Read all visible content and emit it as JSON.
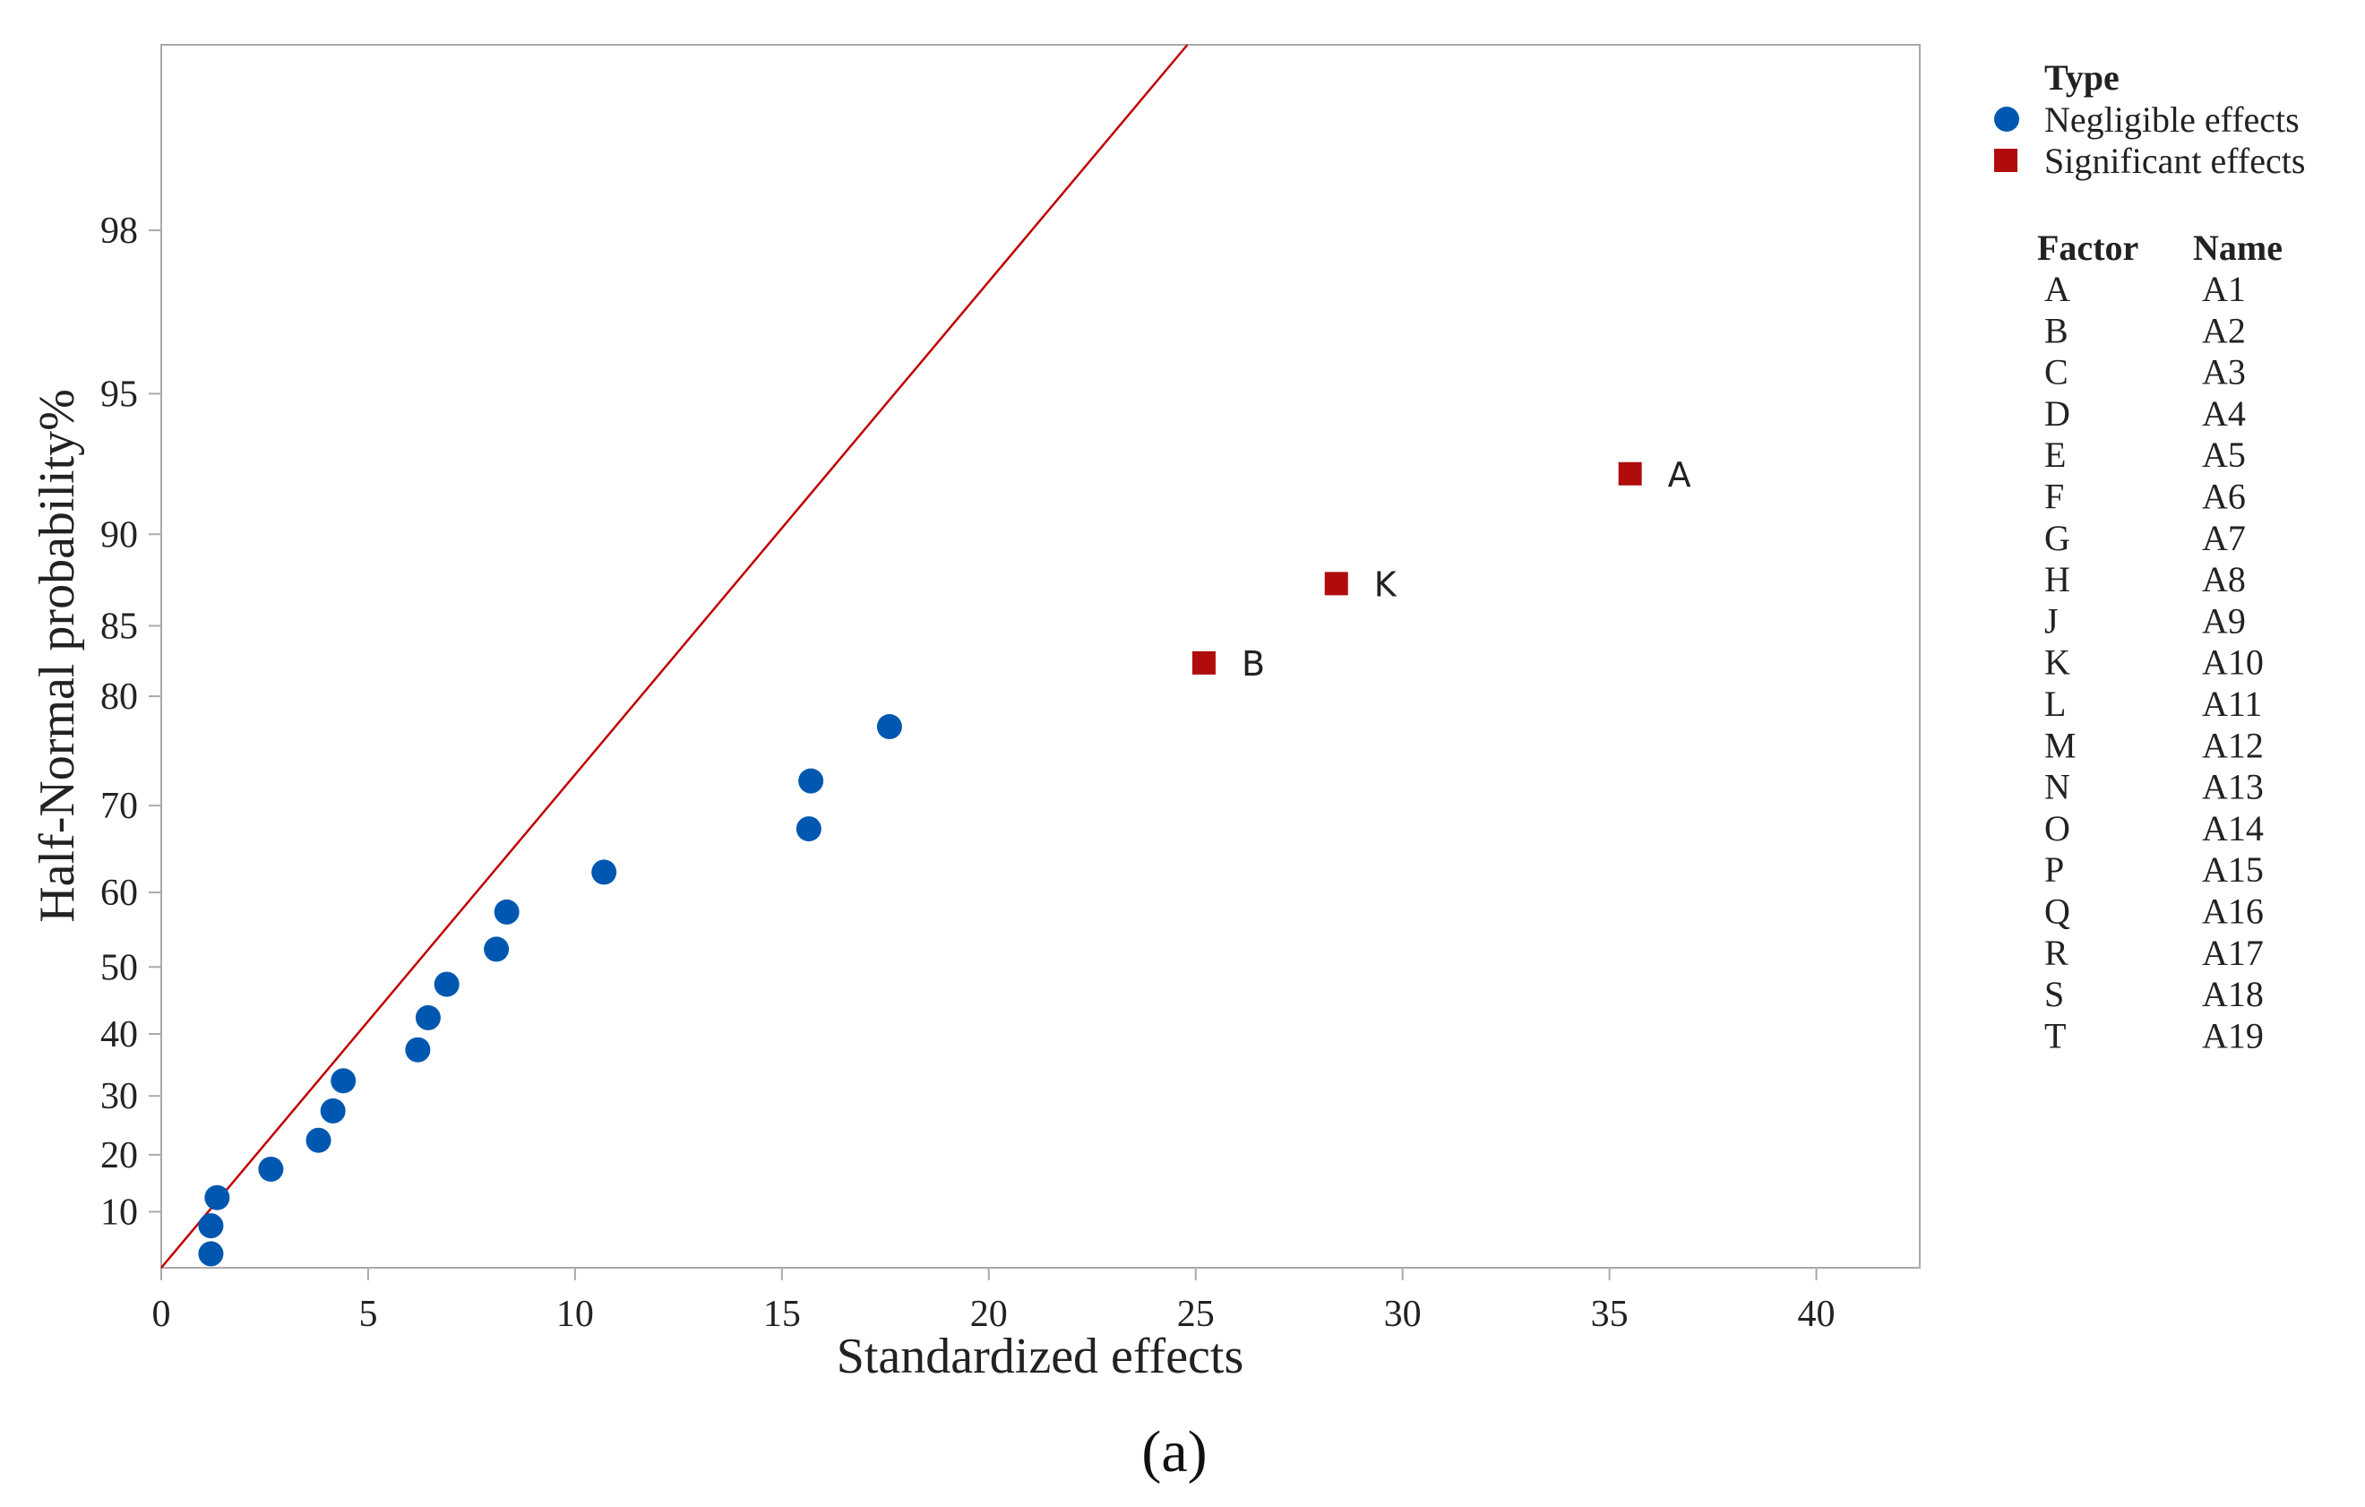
{
  "chart_data": {
    "type": "scatter",
    "xlabel": "Standardized effects",
    "ylabel": "Half-Normal probability%",
    "caption": "(a)",
    "xlim": [
      0,
      42.5
    ],
    "x_ticks": [
      0,
      5,
      10,
      15,
      20,
      25,
      30,
      35,
      40
    ],
    "y_ticks": [
      10,
      20,
      30,
      40,
      50,
      60,
      70,
      80,
      85,
      90,
      95,
      98
    ],
    "grid": false,
    "reference_line": {
      "color": "#c00000",
      "from": [
        0,
        0
      ],
      "to": [
        24.8,
        99.39
      ]
    },
    "legend": {
      "title": "Type",
      "position": "right",
      "entries": [
        {
          "label": "Negligible effects",
          "marker": "circle",
          "color": "#0057b0"
        },
        {
          "label": "Significant effects",
          "marker": "square",
          "color": "#b00c0c"
        }
      ]
    },
    "series": [
      {
        "name": "Negligible effects",
        "color": "#0057b0",
        "points": [
          {
            "x": 1.2,
            "y": 2.5
          },
          {
            "x": 1.2,
            "y": 7.5
          },
          {
            "x": 1.35,
            "y": 12.5
          },
          {
            "x": 2.65,
            "y": 17.5
          },
          {
            "x": 3.8,
            "y": 22.5
          },
          {
            "x": 4.15,
            "y": 27.5
          },
          {
            "x": 4.4,
            "y": 32.5
          },
          {
            "x": 6.2,
            "y": 37.5
          },
          {
            "x": 6.45,
            "y": 42.5
          },
          {
            "x": 6.9,
            "y": 47.5
          },
          {
            "x": 8.1,
            "y": 52.5
          },
          {
            "x": 8.35,
            "y": 57.5
          },
          {
            "x": 10.7,
            "y": 62.5
          },
          {
            "x": 15.65,
            "y": 67.5
          },
          {
            "x": 15.7,
            "y": 72.5
          },
          {
            "x": 17.6,
            "y": 77.5
          }
        ]
      },
      {
        "name": "Significant effects",
        "color": "#b00c0c",
        "points": [
          {
            "x": 25.2,
            "y": 82.5,
            "label": "B"
          },
          {
            "x": 28.4,
            "y": 87.5,
            "label": "K"
          },
          {
            "x": 35.5,
            "y": 92.5,
            "label": "A"
          }
        ]
      }
    ],
    "factor_table": {
      "headers": [
        "Factor",
        "Name"
      ],
      "rows": [
        [
          "A",
          "A1"
        ],
        [
          "B",
          "A2"
        ],
        [
          "C",
          "A3"
        ],
        [
          "D",
          "A4"
        ],
        [
          "E",
          "A5"
        ],
        [
          "F",
          "A6"
        ],
        [
          "G",
          "A7"
        ],
        [
          "H",
          "A8"
        ],
        [
          "J",
          "A9"
        ],
        [
          "K",
          "A10"
        ],
        [
          "L",
          "A11"
        ],
        [
          "M",
          "A12"
        ],
        [
          "N",
          "A13"
        ],
        [
          "O",
          "A14"
        ],
        [
          "P",
          "A15"
        ],
        [
          "Q",
          "A16"
        ],
        [
          "R",
          "A17"
        ],
        [
          "S",
          "A18"
        ],
        [
          "T",
          "A19"
        ]
      ]
    }
  }
}
